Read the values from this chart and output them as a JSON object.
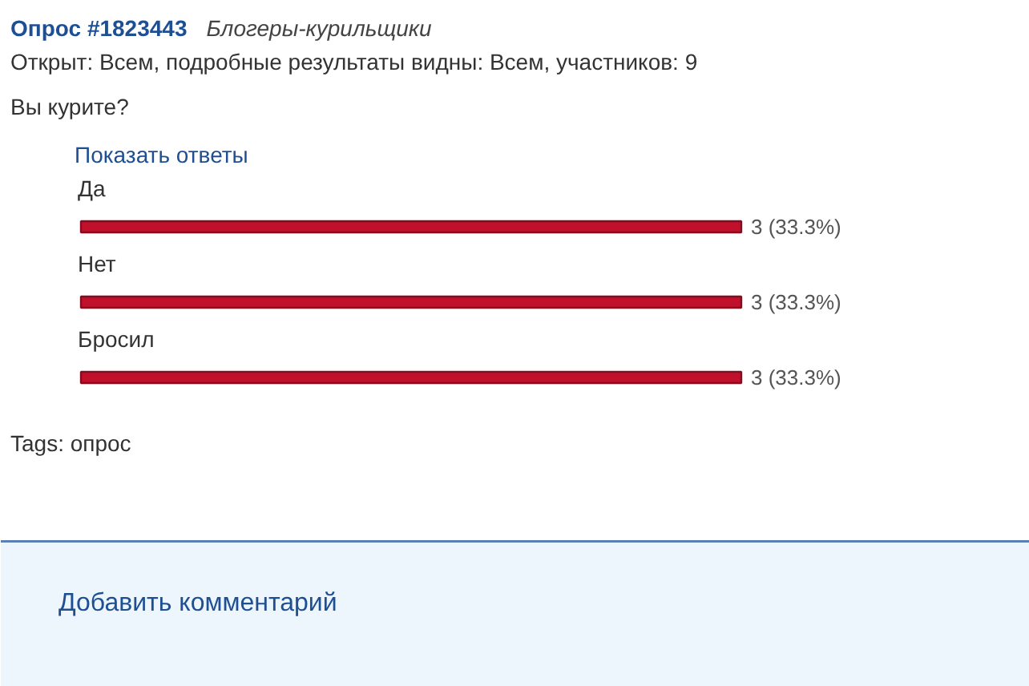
{
  "chart_data": {
    "type": "bar",
    "orientation": "horizontal",
    "title": "Опрос #1823443",
    "subtitle": "Блогеры-курильщики",
    "annotations": [
      "Открыт: Всем, подробные результаты видны: Всем, участников: 9",
      "Вы курите?",
      "Показать ответы",
      "Tags: опрос",
      "Добавить комментарий"
    ],
    "categories": [
      "Да",
      "Нет",
      "Бросил"
    ],
    "values": [
      3,
      3,
      3
    ],
    "color": "#c0102c",
    "value_labels": [
      "3 (33.3%)",
      "3 (33.3%)",
      "3 (33.3%)"
    ]
  }
}
